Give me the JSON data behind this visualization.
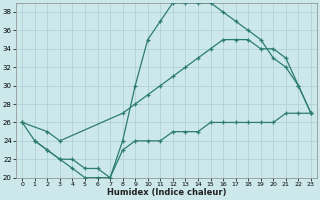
{
  "title": "",
  "xlabel": "Humidex (Indice chaleur)",
  "bg_color": "#cce8ea",
  "line_color": "#2d7d6e",
  "grid_color": "#aacfd2",
  "xlim": [
    -0.5,
    23.5
  ],
  "ylim": [
    20,
    39
  ],
  "yticks": [
    20,
    22,
    24,
    26,
    28,
    30,
    32,
    34,
    36,
    38
  ],
  "xticks": [
    0,
    1,
    2,
    3,
    4,
    5,
    6,
    7,
    8,
    9,
    10,
    11,
    12,
    13,
    14,
    15,
    16,
    17,
    18,
    19,
    20,
    21,
    22,
    23
  ],
  "line1_x": [
    0,
    1,
    2,
    3,
    4,
    5,
    6,
    7,
    8,
    9,
    10,
    11,
    12,
    13,
    14,
    15,
    16,
    17,
    18,
    19,
    20,
    21,
    22,
    23
  ],
  "line1_y": [
    26,
    24,
    23,
    22,
    21,
    20,
    20,
    20,
    24,
    30,
    35,
    37,
    39,
    39,
    39,
    39,
    38,
    37,
    36,
    35,
    33,
    32,
    30,
    27
  ],
  "line2_x": [
    0,
    2,
    3,
    8,
    9,
    10,
    11,
    12,
    13,
    14,
    15,
    16,
    17,
    18,
    19,
    20,
    21,
    22,
    23
  ],
  "line2_y": [
    26,
    25,
    24,
    27,
    28,
    29,
    30,
    31,
    32,
    33,
    34,
    35,
    35,
    35,
    34,
    34,
    33,
    30,
    27
  ],
  "line3_x": [
    1,
    2,
    3,
    4,
    5,
    6,
    7,
    8,
    9,
    10,
    11,
    12,
    13,
    14,
    15,
    16,
    17,
    18,
    19,
    20,
    21,
    22,
    23
  ],
  "line3_y": [
    24,
    23,
    22,
    22,
    21,
    21,
    20,
    23,
    24,
    24,
    24,
    25,
    25,
    25,
    26,
    26,
    26,
    26,
    26,
    26,
    27,
    27,
    27
  ]
}
